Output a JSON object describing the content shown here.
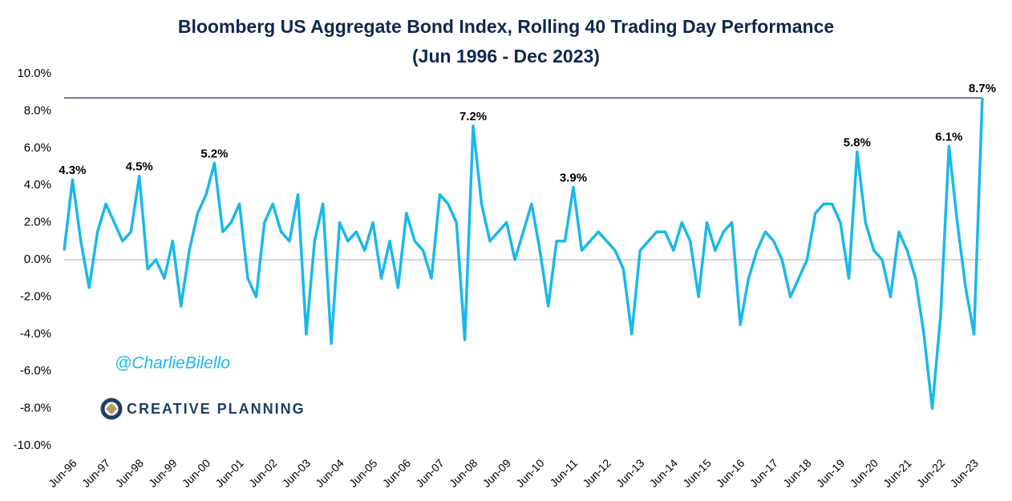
{
  "chart_data": {
    "type": "line",
    "title": "Bloomberg US Aggregate Bond Index, Rolling 40 Trading Day Performance",
    "subtitle": "(Jun 1996 - Dec 2023)",
    "watermark": "@CharlieBilello",
    "logo_text": "CREATIVE PLANNING",
    "categories": [
      "Jun-96",
      null,
      null,
      null,
      "Jun-97",
      null,
      null,
      null,
      "Jun-98",
      null,
      null,
      null,
      "Jun-99",
      null,
      null,
      null,
      "Jun-00",
      null,
      null,
      null,
      "Jun-01",
      null,
      null,
      null,
      "Jun-02",
      null,
      null,
      null,
      "Jun-03",
      null,
      null,
      null,
      "Jun-04",
      null,
      null,
      null,
      "Jun-05",
      null,
      null,
      null,
      "Jun-06",
      null,
      null,
      null,
      "Jun-07",
      null,
      null,
      null,
      "Jun-08",
      null,
      null,
      null,
      "Jun-09",
      null,
      null,
      null,
      "Jun-10",
      null,
      null,
      null,
      "Jun-11",
      null,
      null,
      null,
      "Jun-12",
      null,
      null,
      null,
      "Jun-13",
      null,
      null,
      null,
      "Jun-14",
      null,
      null,
      null,
      "Jun-15",
      null,
      null,
      null,
      "Jun-16",
      null,
      null,
      null,
      "Jun-17",
      null,
      null,
      null,
      "Jun-18",
      null,
      null,
      null,
      "Jun-19",
      null,
      null,
      null,
      "Jun-20",
      null,
      null,
      null,
      "Jun-21",
      null,
      null,
      null,
      "Jun-22",
      null,
      null,
      null,
      "Jun-23",
      null,
      null
    ],
    "values": [
      0.5,
      4.3,
      1.0,
      -1.5,
      1.5,
      3.0,
      2.0,
      1.0,
      1.5,
      4.5,
      -0.5,
      0.0,
      -1.0,
      1.0,
      -2.5,
      0.5,
      2.5,
      3.5,
      5.2,
      1.5,
      2.0,
      3.0,
      -1.0,
      -2.0,
      2.0,
      3.0,
      1.5,
      1.0,
      3.5,
      -4.0,
      1.0,
      3.0,
      -4.5,
      2.0,
      1.0,
      1.5,
      0.5,
      2.0,
      -1.0,
      1.0,
      -1.5,
      2.5,
      1.0,
      0.5,
      -1.0,
      3.5,
      3.0,
      2.0,
      -4.3,
      7.2,
      3.0,
      1.0,
      1.5,
      2.0,
      0.0,
      1.5,
      3.0,
      0.5,
      -2.5,
      1.0,
      1.0,
      3.9,
      0.5,
      1.0,
      1.5,
      1.0,
      0.5,
      -0.5,
      -4.0,
      0.5,
      1.0,
      1.5,
      1.5,
      0.5,
      2.0,
      1.0,
      -2.0,
      2.0,
      0.5,
      1.5,
      2.0,
      -3.5,
      -1.0,
      0.5,
      1.5,
      1.0,
      0.0,
      -2.0,
      -1.0,
      0.0,
      2.5,
      3.0,
      3.0,
      2.0,
      -1.0,
      5.8,
      2.0,
      0.5,
      0.0,
      -2.0,
      1.5,
      0.5,
      -1.0,
      -4.0,
      -8.0,
      -3.0,
      6.1,
      2.0,
      -1.5,
      -4.0,
      8.7
    ],
    "value_labels": [
      null,
      "4.3%",
      null,
      null,
      null,
      null,
      null,
      null,
      null,
      "4.5%",
      null,
      null,
      null,
      null,
      null,
      null,
      null,
      null,
      "5.2%",
      null,
      null,
      null,
      null,
      null,
      null,
      null,
      null,
      null,
      null,
      null,
      null,
      null,
      null,
      null,
      null,
      null,
      null,
      null,
      null,
      null,
      null,
      null,
      null,
      null,
      null,
      null,
      null,
      null,
      null,
      "7.2%",
      null,
      null,
      null,
      null,
      null,
      null,
      null,
      null,
      null,
      null,
      null,
      "3.9%",
      null,
      null,
      null,
      null,
      null,
      null,
      null,
      null,
      null,
      null,
      null,
      null,
      null,
      null,
      null,
      null,
      null,
      null,
      null,
      null,
      null,
      null,
      null,
      null,
      null,
      null,
      null,
      null,
      null,
      null,
      null,
      null,
      null,
      "5.8%",
      null,
      null,
      null,
      null,
      null,
      null,
      null,
      null,
      null,
      null,
      "6.1%",
      null,
      null,
      null,
      "8.7%"
    ],
    "color": "#1ab8ea",
    "ylim": [
      -10,
      10
    ],
    "yticks": [
      {
        "value": -10,
        "label": "-10.0%"
      },
      {
        "value": -8,
        "label": "-8.0%"
      },
      {
        "value": -6,
        "label": "-6.0%"
      },
      {
        "value": -4,
        "label": "-4.0%"
      },
      {
        "value": -2,
        "label": "-2.0%"
      },
      {
        "value": 0,
        "label": "0.0%"
      },
      {
        "value": 2,
        "label": "2.0%"
      },
      {
        "value": 4,
        "label": "4.0%"
      },
      {
        "value": 6,
        "label": "6.0%"
      },
      {
        "value": 8,
        "label": "8.0%"
      },
      {
        "value": 10,
        "label": "10.0%"
      }
    ],
    "grid": false
  }
}
